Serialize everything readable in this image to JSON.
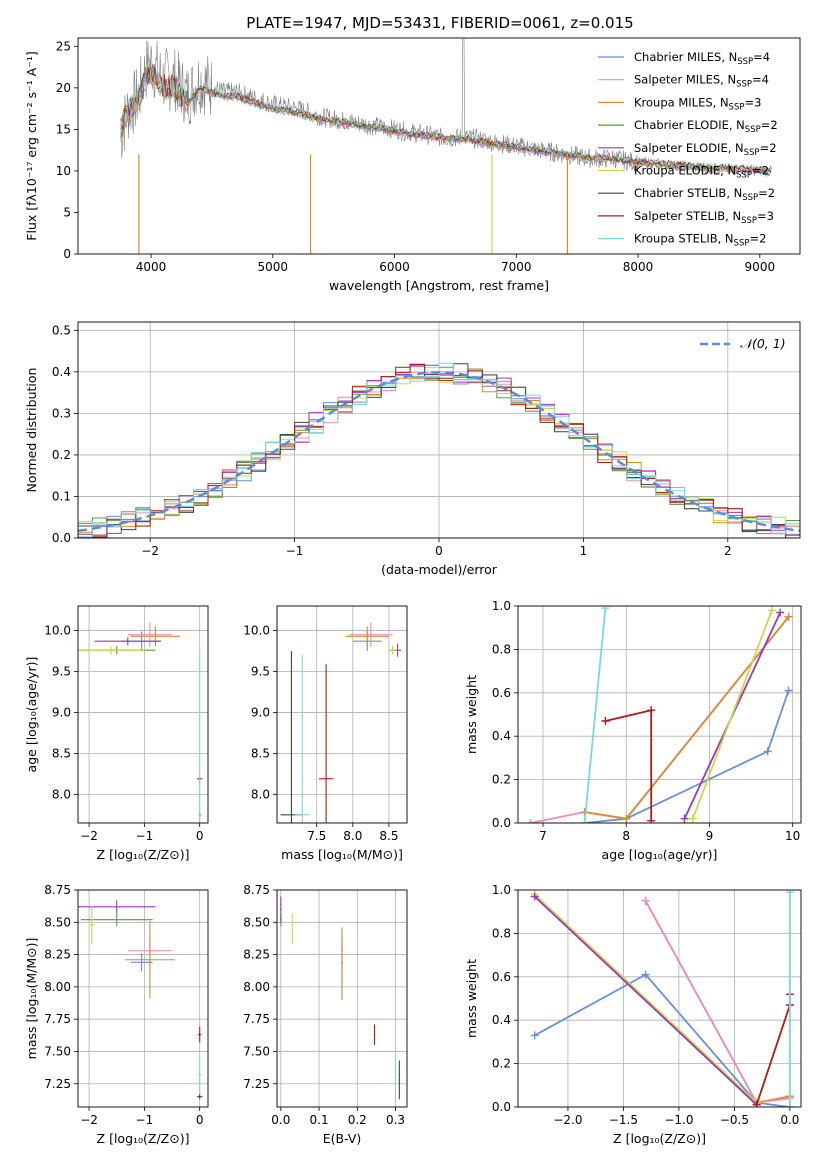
{
  "figure_title": "PLATE=1947, MJD=53431, FIBERID=0061, z=0.015",
  "models": [
    {
      "name": "Chabrier MILES",
      "nssp": "4",
      "color": "#6a8fdc"
    },
    {
      "name": "Salpeter MILES",
      "nssp": "4",
      "color": "#e98fc0"
    },
    {
      "name": "Kroupa MILES",
      "nssp": "3",
      "color": "#d98a32"
    },
    {
      "name": "Chabrier ELODIE",
      "nssp": "2",
      "color": "#5a9a3a"
    },
    {
      "name": "Salpeter ELODIE",
      "nssp": "2",
      "color": "#9a3ab8"
    },
    {
      "name": "Kroupa ELODIE",
      "nssp": "2",
      "color": "#c8d94a"
    },
    {
      "name": "Chabrier STELIB",
      "nssp": "2",
      "color": "#444444"
    },
    {
      "name": "Salpeter STELIB",
      "nssp": "3",
      "color": "#b01a1a"
    },
    {
      "name": "Kroupa STELIB",
      "nssp": "2",
      "color": "#7ad8d8"
    }
  ],
  "nssp_prefix": "N",
  "nssp_sub": "SSP",
  "chart_data": [
    {
      "id": "spectrum",
      "type": "line",
      "title": "PLATE=1947, MJD=53431, FIBERID=0061, z=0.015",
      "xlabel": "wavelength [Angstrom, rest frame]",
      "ylabel": "Flux [fλ10⁻¹⁷ erg cm⁻² s⁻¹ A⁻¹]",
      "xlim": [
        3400,
        9330
      ],
      "ylim": [
        0,
        26
      ],
      "xticks": [
        4000,
        5000,
        6000,
        7000,
        8000,
        9000
      ],
      "yticks": [
        0,
        5,
        10,
        15,
        20,
        25
      ],
      "observed_color": "#808080",
      "observed": {
        "x": [
          3750,
          3800,
          3850,
          3900,
          3950,
          4000,
          4050,
          4100,
          4150,
          4200,
          4300,
          4400,
          4500,
          4600,
          4700,
          4800,
          4900,
          5000,
          5200,
          5400,
          5600,
          5800,
          6000,
          6200,
          6400,
          6600,
          6800,
          7000,
          7200,
          7400,
          7600,
          7800,
          8000,
          8200,
          8400,
          8600,
          8800,
          9000,
          9100
        ],
        "y": [
          14,
          17,
          18,
          19,
          22,
          23,
          22,
          21,
          21,
          21,
          19,
          21,
          20,
          19.5,
          19.5,
          19,
          18.5,
          18,
          17.5,
          16.5,
          16,
          15.5,
          15,
          14.5,
          14,
          14,
          13.5,
          13,
          12.5,
          12,
          11.5,
          11.5,
          11,
          10.8,
          10.5,
          10.3,
          10.2,
          10,
          10
        ]
      },
      "model": {
        "x": [
          3750,
          3800,
          3850,
          3900,
          3950,
          4000,
          4050,
          4100,
          4150,
          4200,
          4300,
          4400,
          4500,
          4600,
          4700,
          4800,
          4900,
          5000,
          5200,
          5400,
          5600,
          5800,
          6000,
          6200,
          6400,
          6600,
          6800,
          7000,
          7200,
          7400,
          7600,
          7800,
          8000,
          8200,
          8400,
          8600,
          8800,
          9000,
          9100
        ],
        "y": [
          15,
          17,
          18,
          19,
          21,
          22,
          21,
          20,
          20,
          20,
          18,
          20,
          19.5,
          19,
          19,
          18.5,
          18,
          17.5,
          17,
          16.2,
          15.8,
          15.3,
          14.8,
          14.3,
          14,
          13.8,
          13.3,
          12.8,
          12.4,
          12,
          11.6,
          11.4,
          11,
          10.8,
          10.6,
          10.4,
          10.3,
          10.1,
          10.1
        ]
      },
      "dips": [
        {
          "x": 3900,
          "y": 0
        },
        {
          "x": 5310,
          "y": 0
        },
        {
          "x": 6800,
          "y": 0
        },
        {
          "x": 7420,
          "y": 0
        }
      ]
    },
    {
      "id": "residuals",
      "type": "line",
      "xlabel": "(data-model)/error",
      "ylabel": "Normed distribution",
      "xlim": [
        -2.5,
        2.5
      ],
      "ylim": [
        0,
        0.52
      ],
      "xticks": [
        -2,
        -1,
        0,
        1,
        2
      ],
      "yticks": [
        0.0,
        0.1,
        0.2,
        0.3,
        0.4,
        0.5
      ],
      "legend": "𝒩(0, 1)",
      "gaussian": {
        "mu": 0,
        "sigma": 1
      }
    },
    {
      "id": "age_vs_Z",
      "type": "scatter",
      "xlabel": "Z [log₁₀(Z/Z⊙)]",
      "ylabel": "age  [log₁₀(age/yr)]",
      "xlim": [
        -2.2,
        0.15
      ],
      "ylim": [
        7.65,
        10.3
      ],
      "xticks": [
        -2,
        -1,
        0
      ],
      "yticks": [
        8.0,
        8.5,
        9.0,
        9.5,
        10.0
      ],
      "points": [
        {
          "m": 0,
          "x": -1.05,
          "y": 9.87,
          "xerr": 0.35,
          "yerr": 0.12
        },
        {
          "m": 1,
          "x": -0.9,
          "y": 9.95,
          "xerr": 0.4,
          "yerr": 0.15
        },
        {
          "m": 2,
          "x": -0.8,
          "y": 9.93,
          "xerr": 0.45,
          "yerr": 0.12
        },
        {
          "m": 3,
          "x": -1.5,
          "y": 9.76,
          "xerr": 0.7,
          "yerr": 0.05
        },
        {
          "m": 4,
          "x": -1.3,
          "y": 9.87,
          "xerr": 0.6,
          "yerr": 0.05
        },
        {
          "m": 5,
          "x": -1.6,
          "y": 9.76,
          "xerr": 0.6,
          "yerr": 0.05
        },
        {
          "m": 6,
          "x": 0.0,
          "y": 7.75,
          "xerr": 0.02,
          "yerr": 0.02
        },
        {
          "m": 7,
          "x": 0.0,
          "y": 8.19,
          "xerr": 0.05,
          "yerr": 0.02
        },
        {
          "m": 8,
          "x": 0.0,
          "y": 7.75,
          "xerr": 0.03,
          "yerr": 2.0
        }
      ]
    },
    {
      "id": "age_vs_mass",
      "type": "scatter",
      "xlabel": "mass [log₁₀(M/M⊙)]",
      "ylabel": "",
      "xlim": [
        6.95,
        8.75
      ],
      "ylim": [
        7.65,
        10.3
      ],
      "xticks": [
        7.5,
        8.0,
        8.5
      ],
      "yticks": [
        8.0,
        8.5,
        9.0,
        9.5,
        10.0
      ],
      "points": [
        {
          "m": 0,
          "x": 8.2,
          "y": 9.87,
          "xerr": 0.2,
          "yerr": 0.12
        },
        {
          "m": 1,
          "x": 8.25,
          "y": 9.95,
          "xerr": 0.3,
          "yerr": 0.15
        },
        {
          "m": 2,
          "x": 8.2,
          "y": 9.93,
          "xerr": 0.3,
          "yerr": 0.12
        },
        {
          "m": 3,
          "x": 8.55,
          "y": 9.76,
          "xerr": 0.05,
          "yerr": 0.05
        },
        {
          "m": 4,
          "x": 8.62,
          "y": 9.76,
          "xerr": 0.05,
          "yerr": 0.08
        },
        {
          "m": 5,
          "x": 8.55,
          "y": 9.76,
          "xerr": 0.05,
          "yerr": 0.05
        },
        {
          "m": 6,
          "x": 7.15,
          "y": 7.75,
          "xerr": 0.15,
          "yerr": 2.0
        },
        {
          "m": 7,
          "x": 7.63,
          "y": 8.19,
          "xerr": 0.1,
          "yerr": 1.4
        },
        {
          "m": 8,
          "x": 7.3,
          "y": 7.75,
          "xerr": 0.1,
          "yerr": 1.95
        }
      ]
    },
    {
      "id": "weight_vs_age",
      "type": "line",
      "xlabel": "age  [log₁₀(age/yr)]",
      "ylabel": "mass weight",
      "xlim": [
        6.7,
        10.1
      ],
      "ylim": [
        0,
        1
      ],
      "xticks": [
        7,
        8,
        9,
        10
      ],
      "yticks": [
        0.0,
        0.2,
        0.4,
        0.6,
        0.8,
        1.0
      ],
      "series": [
        {
          "m": 0,
          "x": [
            7.5,
            8.0,
            9.7,
            9.95
          ],
          "y": [
            0.0,
            0.02,
            0.33,
            0.61
          ]
        },
        {
          "m": 1,
          "x": 6.85,
          "y": 0.0,
          "xs": [
            6.85,
            7.5,
            8.0,
            9.95
          ],
          "ys": [
            0.0,
            0.05,
            0.02,
            0.95
          ]
        },
        {
          "m": 2,
          "x": [
            7.5,
            8.0,
            9.95
          ],
          "y": [
            0.05,
            0.02,
            0.95
          ]
        },
        {
          "m": 4,
          "x": [
            8.7,
            9.85
          ],
          "y": [
            0.02,
            0.97
          ]
        },
        {
          "m": 5,
          "x": [
            8.8,
            9.75
          ],
          "y": [
            0.02,
            0.98
          ]
        },
        {
          "m": 7,
          "x": [
            7.75,
            8.3,
            8.3
          ],
          "y": [
            0.47,
            0.52,
            0.01
          ]
        },
        {
          "m": 8,
          "x": [
            7.5,
            7.75
          ],
          "y": [
            0.0,
            0.99
          ]
        }
      ]
    },
    {
      "id": "mass_vs_Z",
      "type": "scatter",
      "xlabel": "Z [log₁₀(Z/Z⊙)]",
      "ylabel": "mass [log₁₀(M/M⊙)]",
      "xlim": [
        -2.2,
        0.15
      ],
      "ylim": [
        7.07,
        8.75
      ],
      "xticks": [
        -2,
        -1,
        0
      ],
      "yticks": [
        7.25,
        7.5,
        7.75,
        8.0,
        8.25,
        8.5,
        8.75
      ],
      "points": [
        {
          "m": 0,
          "x": -1.05,
          "y": 8.19,
          "xerr": 0.2,
          "yerr": 0.07
        },
        {
          "m": 1,
          "x": -0.9,
          "y": 8.28,
          "xerr": 0.4,
          "yerr": 0.1
        },
        {
          "m": 2,
          "x": -0.9,
          "y": 8.21,
          "xerr": 0.45,
          "yerr": 0.3
        },
        {
          "m": 3,
          "x": -1.5,
          "y": 8.52,
          "xerr": 0.65,
          "yerr": 0.05
        },
        {
          "m": 4,
          "x": -1.5,
          "y": 8.62,
          "xerr": 0.7,
          "yerr": 0.05
        },
        {
          "m": 5,
          "x": -1.95,
          "y": 8.48,
          "xerr": 0.05,
          "yerr": 0.15
        },
        {
          "m": 6,
          "x": 0.0,
          "y": 7.15,
          "xerr": 0.05,
          "yerr": 0.02
        },
        {
          "m": 7,
          "x": 0.0,
          "y": 7.63,
          "xerr": 0.03,
          "yerr": 0.06
        },
        {
          "m": 8,
          "x": 0.0,
          "y": 7.32,
          "xerr": 0.03,
          "yerr": 0.15
        }
      ]
    },
    {
      "id": "mass_vs_ebv",
      "type": "scatter",
      "xlabel": "E(B-V)",
      "ylabel": "",
      "xlim": [
        -0.01,
        0.33
      ],
      "ylim": [
        7.07,
        8.75
      ],
      "xticks": [
        0.0,
        0.1,
        0.2,
        0.3
      ],
      "yticks": [
        7.25,
        7.5,
        7.75,
        8.0,
        8.25,
        8.5,
        8.75
      ],
      "points": [
        {
          "m": 0,
          "x": 0.16,
          "y": 8.19,
          "xerr": 0.002,
          "yerr": 0.2
        },
        {
          "m": 1,
          "x": 0.16,
          "y": 8.28,
          "xerr": 0.002,
          "yerr": 0.1
        },
        {
          "m": 2,
          "x": 0.16,
          "y": 8.18,
          "xerr": 0.002,
          "yerr": 0.28
        },
        {
          "m": 3,
          "x": 0.0,
          "y": 8.52,
          "xerr": 0.002,
          "yerr": 0.05
        },
        {
          "m": 4,
          "x": 0.0,
          "y": 8.6,
          "xerr": 0.002,
          "yerr": 0.1
        },
        {
          "m": 5,
          "x": 0.03,
          "y": 8.45,
          "xerr": 0.002,
          "yerr": 0.12
        },
        {
          "m": 6,
          "x": 0.31,
          "y": 7.28,
          "xerr": 0.002,
          "yerr": 0.15
        },
        {
          "m": 7,
          "x": 0.245,
          "y": 7.63,
          "xerr": 0.002,
          "yerr": 0.08
        },
        {
          "m": 8,
          "x": 0.3,
          "y": 7.38,
          "xerr": 0.002,
          "yerr": 0.12
        }
      ]
    },
    {
      "id": "weight_vs_Z",
      "type": "line",
      "xlabel": "Z [log₁₀(Z/Z⊙)]",
      "ylabel": "mass weight",
      "xlim": [
        -2.45,
        0.1
      ],
      "ylim": [
        0,
        1
      ],
      "xticks": [
        -2.0,
        -1.5,
        -1.0,
        -0.5,
        0.0
      ],
      "yticks": [
        0.0,
        0.2,
        0.4,
        0.6,
        0.8,
        1.0
      ],
      "series": [
        {
          "m": 0,
          "x": [
            -2.3,
            -1.3,
            -0.3,
            0.0
          ],
          "y": [
            0.33,
            0.61,
            0.02,
            0.0
          ]
        },
        {
          "m": 2,
          "x": [
            -1.3,
            -0.3,
            0.0
          ],
          "y": [
            0.95,
            0.02,
            0.05
          ]
        },
        {
          "m": 1,
          "x": [
            -1.3,
            -0.3,
            0.0
          ],
          "y": [
            0.95,
            0.02,
            0.04
          ]
        },
        {
          "m": 5,
          "x": [
            -2.3,
            -0.3
          ],
          "y": [
            0.98,
            0.02
          ]
        },
        {
          "m": 4,
          "x": [
            -2.3,
            -0.3
          ],
          "y": [
            0.97,
            0.01
          ]
        },
        {
          "m": 7,
          "x": [
            -0.3,
            0.0,
            0.0
          ],
          "y": [
            0.01,
            0.47,
            0.52
          ]
        },
        {
          "m": 8,
          "x": [
            0.0,
            0.0
          ],
          "y": [
            0.0,
            0.99
          ]
        }
      ]
    }
  ]
}
